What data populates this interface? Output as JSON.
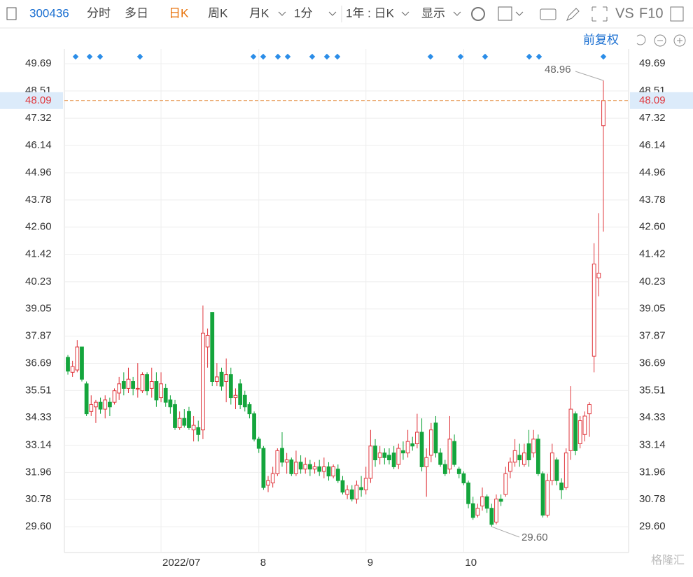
{
  "toolbar": {
    "code": "300436",
    "tabs": [
      "分时",
      "多日",
      "日K",
      "周K",
      "月K",
      "1分",
      "1年 : 日K",
      "显示"
    ],
    "vs": "VS",
    "f10": "F10",
    "adjust": "前复权"
  },
  "watermark": "格隆汇",
  "chart_data": {
    "type": "candlestick",
    "up_color": "#e0383e",
    "down_color": "#14a53c",
    "grid": true,
    "categories": [
      null,
      null,
      null,
      null,
      null,
      null,
      null,
      null,
      null,
      null,
      null,
      null,
      null,
      null,
      null,
      null,
      null,
      null,
      null,
      null,
      "2022/07",
      null,
      null,
      null,
      null,
      null,
      null,
      null,
      null,
      null,
      null,
      null,
      null,
      null,
      null,
      null,
      null,
      null,
      null,
      null,
      null,
      "8",
      null,
      null,
      null,
      null,
      null,
      null,
      null,
      null,
      null,
      null,
      null,
      null,
      null,
      null,
      null,
      null,
      null,
      null,
      null,
      null,
      null,
      null,
      "9",
      null,
      null,
      null,
      null,
      null,
      null,
      null,
      null,
      null,
      null,
      null,
      null,
      null,
      null,
      null,
      null,
      null,
      null,
      null,
      null,
      "10",
      null,
      null,
      null,
      null,
      null,
      null,
      null,
      null,
      null,
      null,
      null,
      null,
      null,
      null,
      null,
      null,
      null,
      null,
      null,
      null,
      null,
      null,
      null,
      null,
      null,
      null,
      null,
      null,
      null,
      null
    ],
    "open": [
      36.95,
      36.3,
      36.4,
      37.4,
      35.8,
      34.6,
      34.8,
      35.0,
      34.7,
      35.0,
      35.0,
      35.4,
      35.9,
      35.6,
      35.9,
      35.6,
      35.5,
      36.2,
      35.6,
      35.9,
      35.2,
      35.6,
      35.1,
      34.9,
      33.9,
      34.3,
      34.6,
      33.8,
      33.9,
      33.8,
      37.4,
      38.9,
      35.9,
      36.3,
      35.9,
      36.2,
      35.2,
      35.8,
      35.3,
      34.9,
      34.5,
      33.4,
      33.0,
      31.4,
      31.5,
      31.9,
      33.0,
      32.4,
      32.5,
      31.9,
      32.4,
      32.1,
      32.3,
      32.1,
      32.2,
      32.0,
      32.2,
      31.8,
      32.1,
      31.6,
      31.0,
      31.2,
      30.8,
      31.3,
      31.2,
      31.7,
      33.1,
      32.6,
      32.8,
      32.7,
      32.8,
      32.3,
      32.9,
      32.8,
      33.2,
      33.2,
      33.7,
      32.2,
      32.7,
      34.1,
      32.8,
      32.3,
      32.1,
      33.3,
      32.1,
      31.9,
      31.5,
      30.6,
      30.1,
      30.5,
      30.9,
      30.4,
      29.8,
      30.8,
      31.0,
      32.0,
      32.4,
      32.7,
      32.3,
      33.2,
      32.8,
      33.4,
      31.9,
      30.1,
      31.6,
      32.5,
      31.5,
      31.3,
      32.9,
      34.5,
      33.2,
      33.6,
      34.5,
      37.0,
      40.4,
      47.0
    ],
    "close": [
      36.35,
      36.55,
      37.4,
      36.0,
      34.5,
      34.9,
      35.0,
      34.7,
      35.1,
      34.8,
      35.5,
      35.8,
      35.6,
      36.0,
      35.6,
      35.6,
      36.2,
      35.5,
      35.9,
      35.1,
      35.8,
      35.0,
      34.8,
      33.9,
      34.3,
      34.0,
      33.9,
      34.0,
      33.6,
      38.0,
      37.9,
      35.9,
      36.1,
      35.7,
      36.2,
      35.2,
      35.3,
      34.9,
      34.8,
      34.5,
      33.4,
      33.0,
      31.3,
      31.6,
      31.9,
      32.9,
      32.4,
      32.5,
      31.9,
      32.4,
      32.1,
      32.3,
      32.1,
      32.2,
      32.0,
      32.2,
      31.8,
      32.2,
      31.6,
      31.1,
      31.2,
      30.8,
      31.4,
      31.2,
      31.7,
      33.1,
      32.5,
      32.8,
      32.6,
      32.5,
      32.2,
      33.0,
      32.8,
      33.3,
      33.1,
      33.7,
      32.2,
      32.6,
      33.8,
      32.8,
      32.3,
      31.9,
      33.4,
      32.3,
      31.9,
      31.5,
      30.6,
      30.0,
      30.4,
      30.9,
      30.4,
      29.7,
      30.8,
      30.7,
      31.9,
      32.4,
      32.9,
      32.5,
      32.8,
      32.5,
      33.4,
      31.9,
      30.1,
      31.6,
      32.8,
      31.6,
      31.2,
      32.8,
      34.7,
      32.9,
      34.2,
      34.4,
      34.9,
      41.0,
      40.6,
      48.09
    ],
    "low": [
      36.2,
      36.1,
      36.3,
      35.9,
      34.4,
      34.4,
      34.1,
      34.5,
      34.3,
      34.4,
      34.9,
      35.1,
      35.3,
      35.4,
      35.3,
      35.2,
      35.4,
      35.3,
      35.2,
      34.8,
      35.0,
      34.8,
      34.5,
      33.8,
      33.8,
      33.9,
      33.8,
      33.3,
      33.3,
      33.4,
      36.5,
      35.7,
      35.7,
      35.5,
      35.0,
      34.9,
      34.7,
      34.7,
      34.6,
      34.3,
      33.3,
      32.8,
      31.2,
      31.1,
      31.3,
      31.8,
      32.2,
      31.9,
      31.8,
      31.8,
      31.9,
      31.9,
      31.8,
      31.9,
      31.8,
      31.7,
      31.6,
      31.7,
      31.5,
      31.0,
      30.8,
      30.7,
      30.6,
      30.9,
      31.0,
      31.5,
      32.2,
      32.3,
      32.3,
      32.3,
      32.1,
      32.1,
      32.5,
      32.6,
      32.9,
      33.0,
      32.0,
      30.9,
      32.4,
      32.6,
      32.2,
      31.8,
      31.9,
      32.2,
      31.7,
      31.4,
      30.4,
      29.9,
      30.0,
      30.3,
      30.2,
      29.6,
      29.7,
      30.5,
      30.9,
      31.7,
      32.2,
      32.2,
      32.2,
      32.2,
      32.6,
      31.8,
      30.0,
      30.0,
      31.4,
      31.4,
      30.8,
      31.2,
      32.5,
      32.7,
      33.0,
      33.3,
      33.5,
      36.3,
      39.6,
      42.4
    ],
    "high": [
      37.05,
      36.8,
      37.7,
      37.4,
      35.9,
      35.3,
      35.1,
      35.2,
      35.3,
      35.2,
      35.6,
      36.1,
      36.3,
      36.5,
      36.1,
      36.7,
      36.3,
      36.3,
      36.5,
      36.3,
      36.3,
      35.8,
      35.3,
      35.1,
      34.6,
      34.7,
      34.8,
      34.4,
      34.2,
      39.2,
      38.2,
      38.9,
      36.7,
      36.5,
      36.9,
      36.5,
      35.6,
      36.0,
      35.5,
      35.0,
      34.6,
      33.5,
      33.1,
      31.8,
      32.2,
      33.0,
      33.7,
      32.8,
      32.6,
      32.9,
      32.7,
      32.6,
      32.5,
      32.4,
      32.5,
      32.6,
      32.4,
      32.3,
      32.3,
      31.8,
      31.4,
      31.4,
      31.6,
      31.8,
      32.2,
      33.8,
      33.4,
      33.1,
      33.0,
      33.0,
      33.1,
      33.2,
      33.3,
      33.8,
      33.5,
      34.5,
      34.3,
      33.0,
      34.1,
      34.4,
      33.0,
      32.5,
      34.4,
      33.6,
      32.2,
      32.0,
      31.6,
      30.9,
      30.6,
      31.3,
      31.0,
      30.6,
      31.0,
      31.0,
      32.2,
      32.6,
      33.4,
      33.2,
      33.2,
      33.8,
      33.8,
      33.6,
      32.0,
      31.9,
      33.2,
      32.6,
      31.7,
      33.0,
      35.7,
      34.6,
      34.4,
      34.6,
      35.0,
      41.9,
      43.2,
      48.96
    ],
    "ylim": [
      28.48,
      50.33
    ],
    "yticks": [
      {
        "value": 29.6,
        "label": "29.60"
      },
      30.78,
      31.96,
      33.14,
      34.33,
      35.51,
      36.69,
      37.87,
      39.05,
      40.23,
      41.42,
      {
        "value": 42.6,
        "label": "42.60"
      },
      43.78,
      44.96,
      46.14,
      47.32,
      48.51,
      49.69
    ],
    "current_price": 48.09,
    "high_label": 48.96,
    "low_label": {
      "value": 29.6,
      "label": "29.60"
    }
  }
}
